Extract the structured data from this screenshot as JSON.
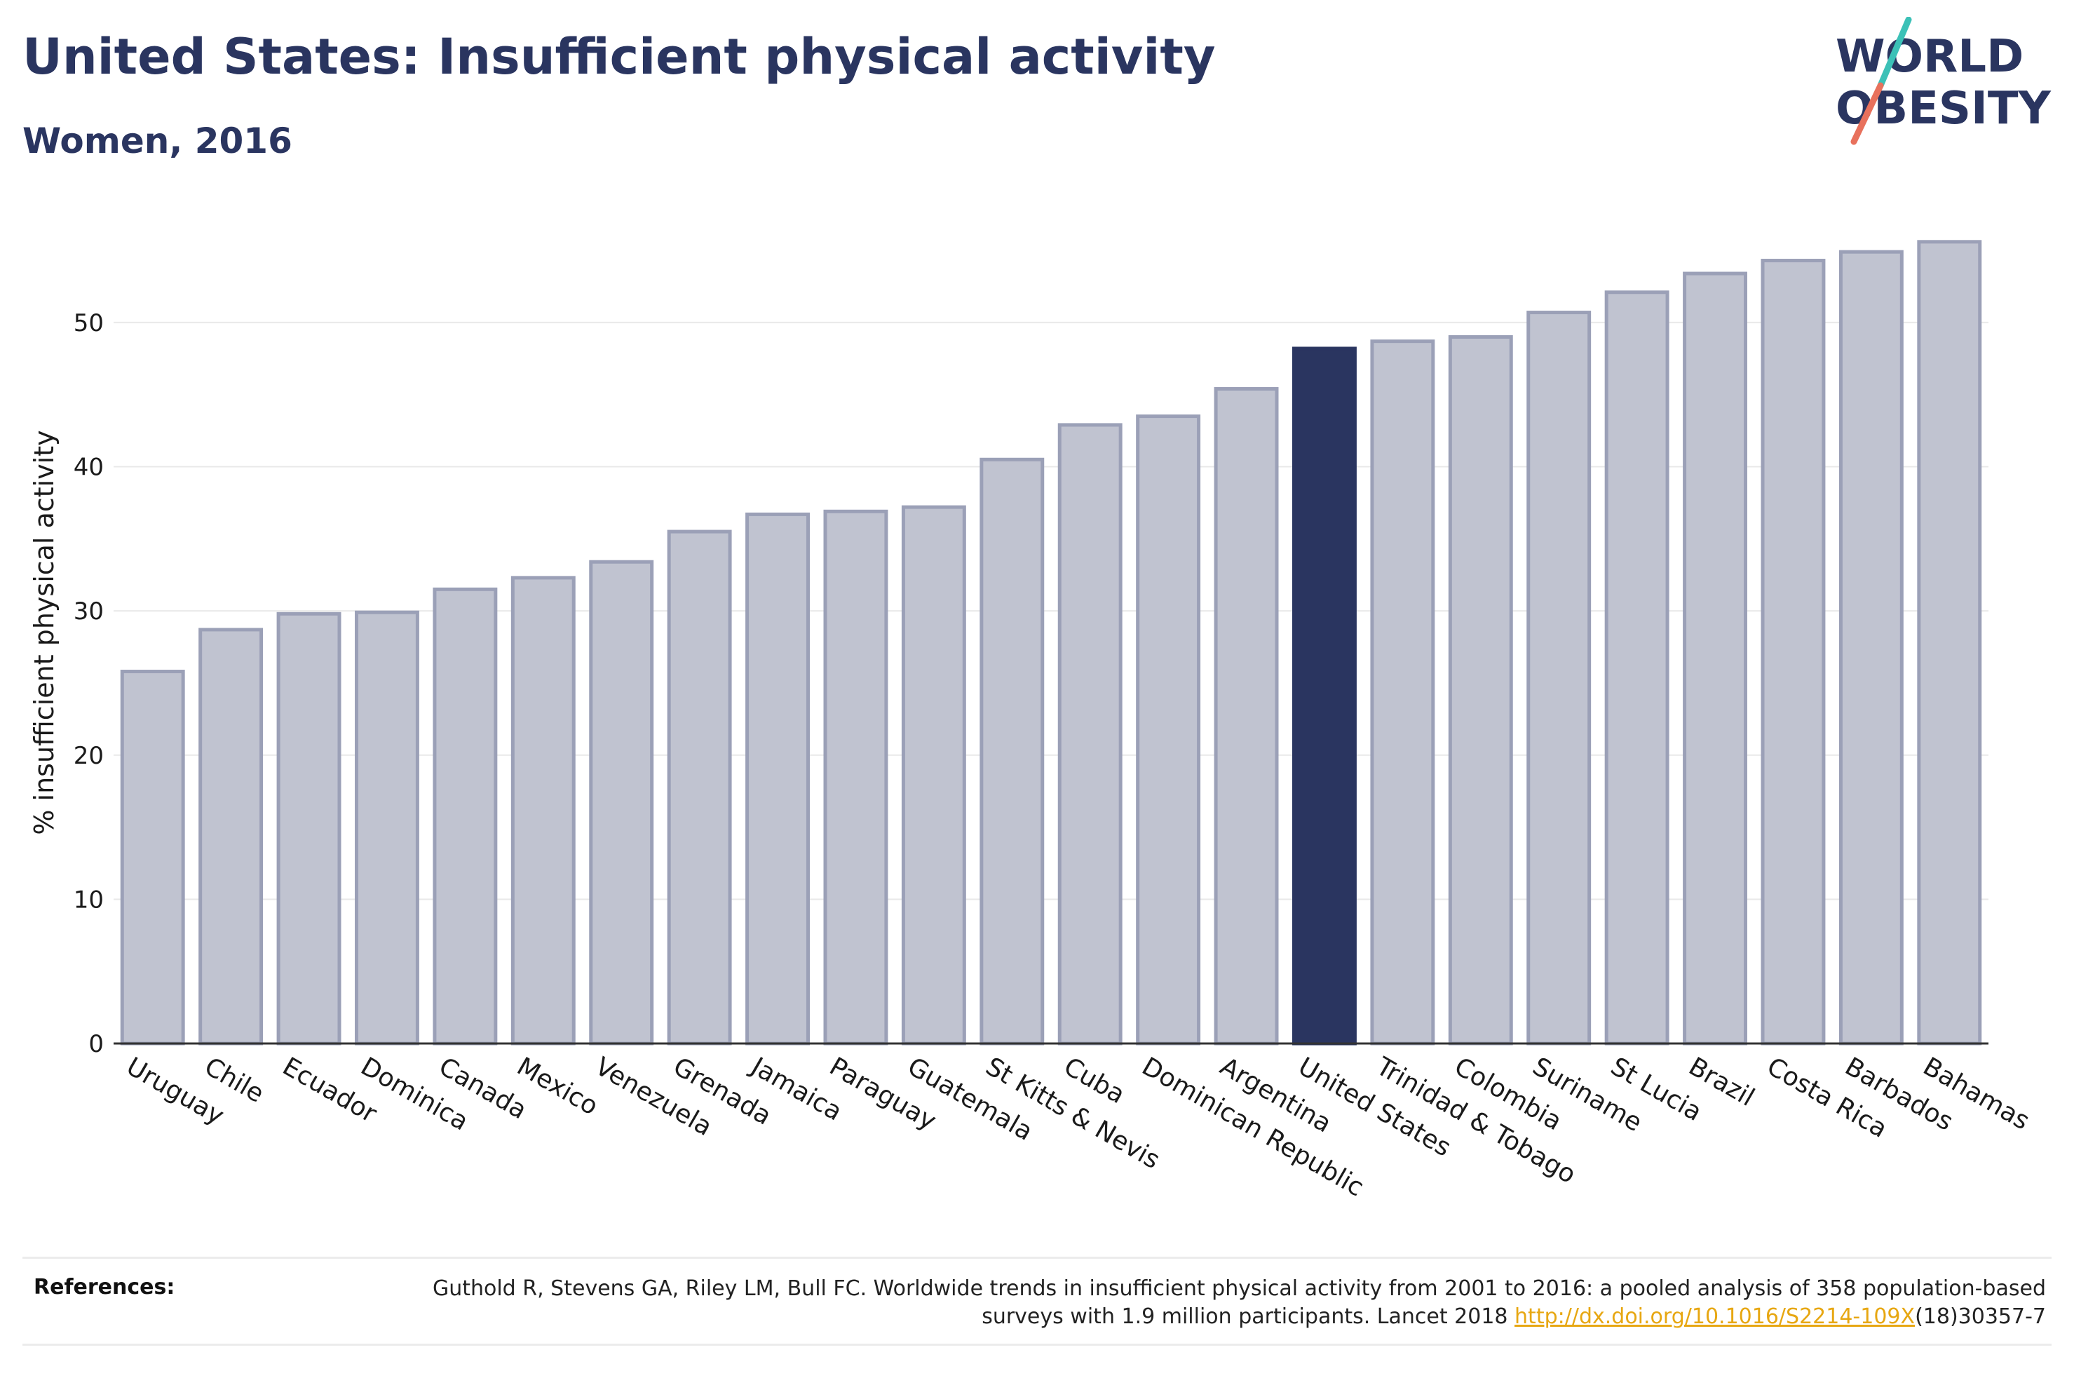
{
  "header": {
    "title": "United States: Insufficient physical activity",
    "subtitle": "Women, 2016"
  },
  "logo": {
    "line1": "WORLD",
    "line2": "OBESITY",
    "text_color": "#2a3560",
    "slash_colors": [
      "#3cc1b7",
      "#e8715c"
    ]
  },
  "chart_data": {
    "type": "bar",
    "title": "",
    "xlabel": "",
    "ylabel": "% insufficient physical activity",
    "ylim": [
      0,
      57
    ],
    "yticks": [
      0,
      10,
      20,
      30,
      40,
      50
    ],
    "grid": true,
    "categories": [
      "Uruguay",
      "Chile",
      "Ecuador",
      "Dominica",
      "Canada",
      "Mexico",
      "Venezuela",
      "Grenada",
      "Jamaica",
      "Paraguay",
      "Guatemala",
      "St Kitts & Nevis",
      "Cuba",
      "Dominican Republic",
      "Argentina",
      "United States",
      "Trinidad & Tobago",
      "Colombia",
      "Suriname",
      "St Lucia",
      "Brazil",
      "Costa Rica",
      "Barbados",
      "Bahamas"
    ],
    "values": [
      25.8,
      28.7,
      29.8,
      29.9,
      31.5,
      32.3,
      33.4,
      35.5,
      36.7,
      36.9,
      37.2,
      40.5,
      42.9,
      43.5,
      45.4,
      48.2,
      48.7,
      49.0,
      50.7,
      52.1,
      53.4,
      54.3,
      54.9,
      55.6
    ],
    "highlight": "United States",
    "colors": {
      "bar": "#c0c3d0",
      "bar_edge": "#9ba0b7",
      "highlight": "#2a3560",
      "grid": "#e9e9e9",
      "axis": "#333333"
    }
  },
  "references": {
    "label": "References:",
    "text_before": "Guthold R, Stevens GA, Riley LM, Bull FC. Worldwide trends in insufficient physical activity from 2001 to 2016: a pooled analysis of 358 population-based surveys with 1.9 million participants. Lancet 2018 ",
    "link": "http://dx.doi.org/10.1016/S2214-109X",
    "text_after": "(18)30357-7"
  }
}
